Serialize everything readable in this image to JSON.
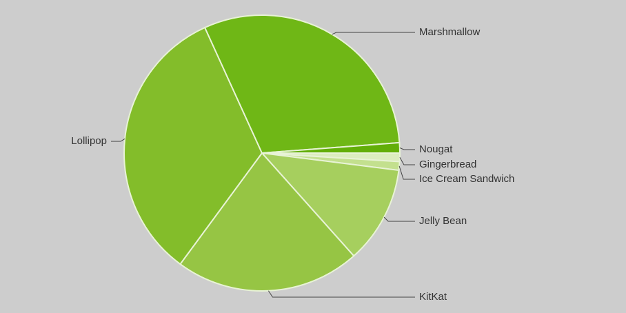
{
  "chart_data": {
    "type": "pie",
    "categories": [
      "Gingerbread",
      "Ice Cream Sandwich",
      "Jelly Bean",
      "KitKat",
      "Lollipop",
      "Marshmallow",
      "Nougat"
    ],
    "values": [
      1.0,
      1.0,
      11.4,
      21.7,
      33.1,
      30.6,
      1.2
    ],
    "colors": [
      "#dcedbf",
      "#c3e08e",
      "#a6cf5e",
      "#96c544",
      "#83bd2a",
      "#6fb716",
      "#62ae08"
    ]
  }
}
